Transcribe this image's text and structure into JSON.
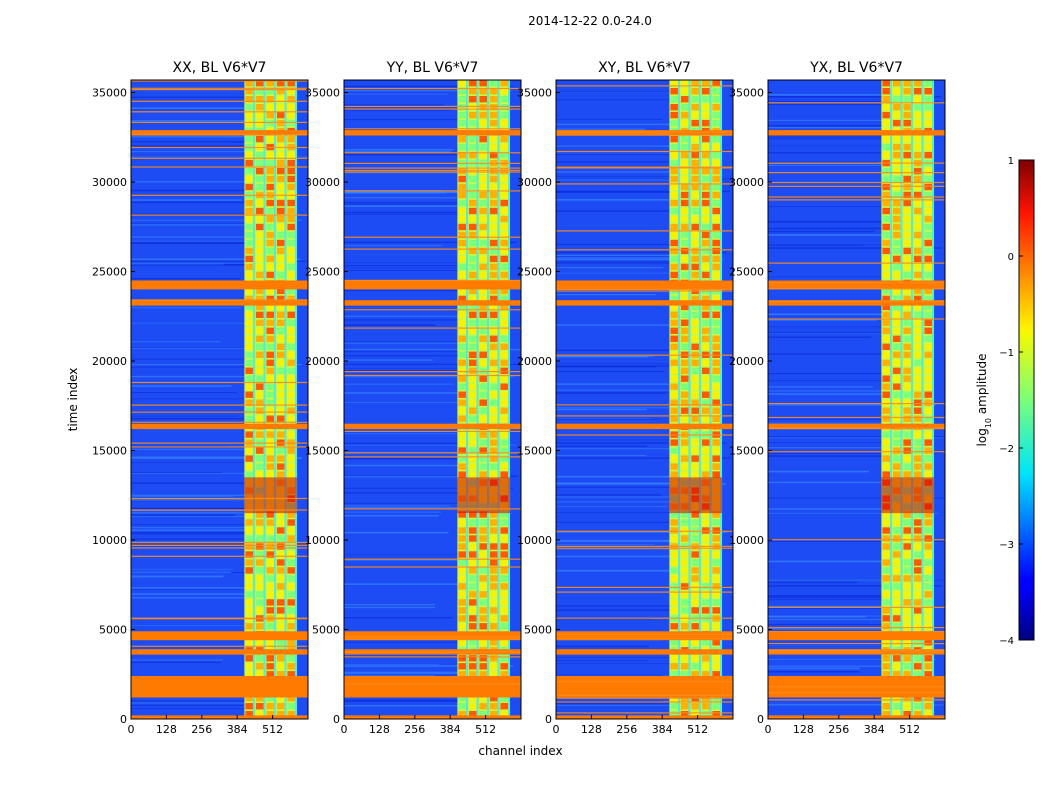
{
  "chart_data": {
    "type": "heatmap",
    "suptitle": "2014-12-22 0.0-24.0",
    "xlabel": "channel index",
    "ylabel": "time index",
    "xlim": [
      0,
      640
    ],
    "ylim": [
      0,
      35700
    ],
    "x_ticks": [
      0,
      128,
      256,
      384,
      512
    ],
    "y_ticks": [
      0,
      5000,
      10000,
      15000,
      20000,
      25000,
      30000,
      35000
    ],
    "panels": [
      {
        "title": "XX, BL V6*V7"
      },
      {
        "title": "YY, BL V6*V7"
      },
      {
        "title": "XY, BL V6*V7"
      },
      {
        "title": "YX, BL V6*V7"
      }
    ],
    "colorbar": {
      "label": "log10 amplitude",
      "label_main": "log",
      "label_sub": "10",
      "label_rest": " amplitude",
      "range": [
        -4,
        1
      ],
      "ticks": [
        1,
        0,
        -1,
        -2,
        -3,
        -4
      ],
      "tick_labels": [
        "1",
        "0",
        "−1",
        "−2",
        "−3",
        "−4"
      ],
      "colormap": "jet"
    },
    "description_bands": {
      "signal_channel_range": [
        410,
        600
      ],
      "flagged_time_rows": [
        [
          0,
          200
        ],
        [
          1200,
          2400
        ],
        [
          3600,
          3900
        ],
        [
          4400,
          4900
        ],
        [
          16200,
          16500
        ],
        [
          23100,
          23400
        ],
        [
          24000,
          24500
        ],
        [
          32600,
          32900
        ]
      ]
    }
  }
}
